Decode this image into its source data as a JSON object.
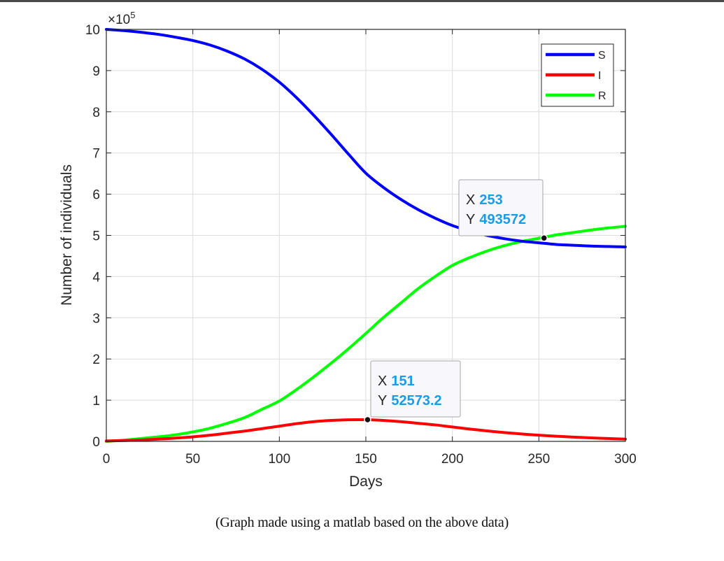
{
  "chart_data": {
    "type": "line",
    "xlabel": "Days",
    "ylabel": "Number of individuals",
    "y_exponent_label": "×10",
    "y_exponent_power": "5",
    "xlim": [
      0,
      300
    ],
    "ylim": [
      0,
      1000000
    ],
    "x_ticks": [
      0,
      50,
      100,
      150,
      200,
      250,
      300
    ],
    "y_ticks": [
      0,
      100000,
      200000,
      300000,
      400000,
      500000,
      600000,
      700000,
      800000,
      900000,
      1000000
    ],
    "y_tick_labels": [
      "0",
      "1",
      "2",
      "3",
      "4",
      "5",
      "6",
      "7",
      "8",
      "9",
      "10"
    ],
    "grid": true,
    "legend_position": "top-right",
    "x": [
      0,
      10,
      20,
      30,
      40,
      50,
      60,
      70,
      80,
      90,
      100,
      110,
      120,
      130,
      140,
      150,
      160,
      170,
      180,
      190,
      200,
      210,
      220,
      230,
      240,
      250,
      260,
      270,
      280,
      290,
      300
    ],
    "series": [
      {
        "name": "S",
        "color": "#0000ff",
        "values": [
          1000000,
          997000,
          993000,
          988000,
          981000,
          973000,
          962000,
          947000,
          928000,
          903000,
          872000,
          834000,
          791000,
          745000,
          697000,
          651000,
          617000,
          588000,
          563000,
          542000,
          524000,
          511000,
          500000,
          492000,
          486000,
          482000,
          478000,
          476000,
          474000,
          473000,
          472000
        ]
      },
      {
        "name": "I",
        "color": "#ff0000",
        "values": [
          1000,
          2000,
          3500,
          5500,
          8000,
          11000,
          15000,
          20000,
          25000,
          31000,
          37000,
          43000,
          48000,
          51000,
          52500,
          52573.2,
          51000,
          48000,
          44000,
          40000,
          35000,
          30000,
          25500,
          21500,
          18000,
          15000,
          12500,
          10500,
          8500,
          7000,
          5500
        ]
      },
      {
        "name": "R",
        "color": "#00ff00",
        "values": [
          0,
          3000,
          7000,
          11000,
          16000,
          23000,
          32000,
          44000,
          58000,
          78000,
          98000,
          126000,
          157000,
          190000,
          225000,
          262000,
          300000,
          335000,
          370000,
          400000,
          427000,
          446000,
          462000,
          475000,
          485000,
          493000,
          501000,
          507000,
          513000,
          518000,
          522000
        ]
      }
    ],
    "datatips": [
      {
        "x_label": "X",
        "x_value": "253",
        "y_label": "Y",
        "y_value": "493572",
        "x": 253,
        "y": 493572
      },
      {
        "x_label": "X",
        "x_value": "151",
        "y_label": "Y",
        "y_value": "52573.2",
        "x": 151,
        "y": 52573.2
      }
    ]
  },
  "caption": "(Graph made using a matlab based on the above data)"
}
